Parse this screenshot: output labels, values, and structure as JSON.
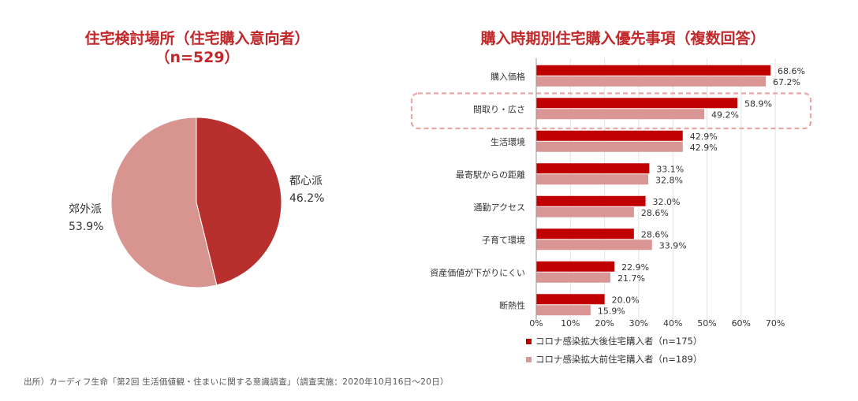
{
  "colors": {
    "dark_red": "#b7302e",
    "light_red": "#d89590",
    "bar_dark": "#c00000",
    "bar_light": "#d99694",
    "title": "#c0282a",
    "highlight": "#e8a8a6"
  },
  "chart_data": [
    {
      "type": "pie",
      "title": "住宅検討場所（住宅購入意向者）",
      "subtitle": "（n=529）",
      "slices": [
        {
          "label": "都心派",
          "value": 46.2,
          "display": "46.2%"
        },
        {
          "label": "郊外派",
          "value": 53.9,
          "display": "53.9%"
        }
      ]
    },
    {
      "type": "bar",
      "orientation": "horizontal",
      "title": "購入時期別住宅購入優先事項（複数回答）",
      "categories": [
        "購入価格",
        "間取り・広さ",
        "生活環境",
        "最寄駅からの距離",
        "通勤アクセス",
        "子育て環境",
        "資産価値が下がりにくい",
        "断熱性"
      ],
      "series": [
        {
          "name": "コロナ感染拡大後住宅購入者（n=175）",
          "values": [
            68.6,
            58.9,
            42.9,
            33.1,
            32.0,
            28.6,
            22.9,
            20.0
          ]
        },
        {
          "name": "コロナ感染拡大前住宅購入者（n=189）",
          "values": [
            67.2,
            49.2,
            42.9,
            32.8,
            28.6,
            33.9,
            21.7,
            15.9
          ]
        }
      ],
      "value_labels": [
        [
          "68.6%",
          "58.9%",
          "42.9%",
          "33.1%",
          "32.0%",
          "28.6%",
          "22.9%",
          "20.0%"
        ],
        [
          "67.2%",
          "49.2%",
          "42.9%",
          "32.8%",
          "28.6%",
          "33.9%",
          "21.7%",
          "15.9%"
        ]
      ],
      "xlim": [
        0,
        70
      ],
      "xticks": [
        "0%",
        "10%",
        "20%",
        "30%",
        "40%",
        "50%",
        "60%",
        "70%"
      ],
      "highlighted_category": "間取り・広さ",
      "grid": true,
      "legend_position": "bottom"
    }
  ],
  "source": "出所）カーディフ生命「第2回 生活価値観・住まいに関する意識調査」（調査実施：2020年10月16日～20日）"
}
